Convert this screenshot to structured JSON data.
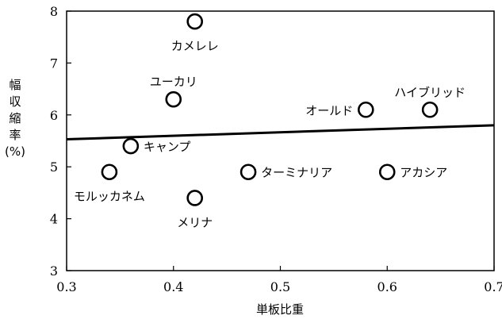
{
  "chart_data": {
    "type": "scatter",
    "xlabel": "単板比重",
    "ylabel": "幅収縮率(%)",
    "ylabel_lines": [
      "幅",
      "収",
      "縮",
      "率",
      "(%)"
    ],
    "xlim": [
      0.3,
      0.7
    ],
    "ylim": [
      3,
      8
    ],
    "x_ticks": [
      0.3,
      0.4,
      0.5,
      0.6,
      0.7
    ],
    "x_tick_labels": [
      "0.3",
      "0.4",
      "0.5",
      "0.6",
      "0.7"
    ],
    "y_ticks": [
      3,
      4,
      5,
      6,
      7,
      8
    ],
    "y_tick_labels": [
      "3",
      "4",
      "5",
      "6",
      "7",
      "8"
    ],
    "grid": false,
    "points": [
      {
        "label": "カメレレ",
        "x": 0.42,
        "y": 7.8,
        "label_pos": "below"
      },
      {
        "label": "ユーカリ",
        "x": 0.4,
        "y": 6.3,
        "label_pos": "above"
      },
      {
        "label": "オールド",
        "x": 0.58,
        "y": 6.1,
        "label_pos": "left"
      },
      {
        "label": "ハイブリッド",
        "x": 0.64,
        "y": 6.1,
        "label_pos": "above"
      },
      {
        "label": "キャンプ",
        "x": 0.36,
        "y": 5.4,
        "label_pos": "right"
      },
      {
        "label": "モルッカネム",
        "x": 0.34,
        "y": 4.9,
        "label_pos": "below"
      },
      {
        "label": "ターミナリア",
        "x": 0.47,
        "y": 4.9,
        "label_pos": "right"
      },
      {
        "label": "アカシア",
        "x": 0.6,
        "y": 4.9,
        "label_pos": "right"
      },
      {
        "label": "メリナ",
        "x": 0.42,
        "y": 4.4,
        "label_pos": "below"
      }
    ],
    "trend_line": {
      "x": [
        0.3,
        0.7
      ],
      "y": [
        5.53,
        5.8
      ]
    }
  }
}
